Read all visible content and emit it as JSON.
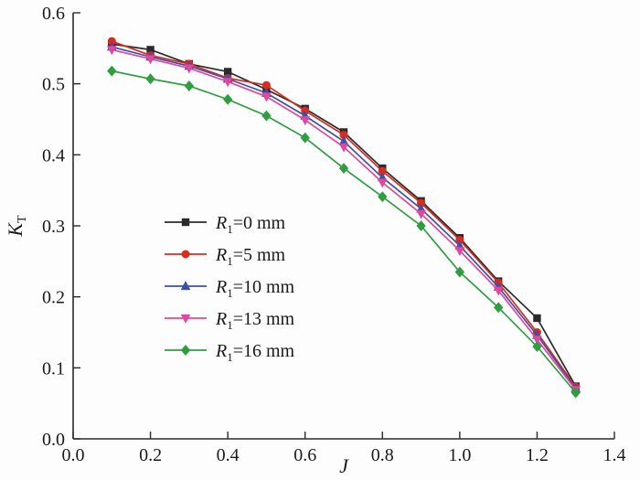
{
  "chart_data": {
    "type": "line",
    "title": "",
    "xlabel": "J",
    "ylabel": "K",
    "ylabel_sub": "T",
    "xlim": [
      0.0,
      1.4
    ],
    "ylim": [
      0.0,
      0.6
    ],
    "xticks": [
      "0.0",
      "0.2",
      "0.4",
      "0.6",
      "0.8",
      "1.0",
      "1.2",
      "1.4"
    ],
    "yticks": [
      "0.0",
      "0.1",
      "0.2",
      "0.3",
      "0.4",
      "0.5",
      "0.6"
    ],
    "grid": false,
    "legend_position": "inside-left-middle",
    "axis_color": "#2b2b2b",
    "x": [
      0.1,
      0.2,
      0.3,
      0.4,
      0.5,
      0.6,
      0.7,
      0.8,
      0.9,
      1.0,
      1.1,
      1.2,
      1.3
    ],
    "series": [
      {
        "name": "R₁=0 mm",
        "marker": "square",
        "color": "#2b2b2b",
        "values": [
          0.556,
          0.548,
          0.528,
          0.517,
          0.492,
          0.465,
          0.432,
          0.381,
          0.335,
          0.283,
          0.222,
          0.17,
          0.074
        ]
      },
      {
        "name": "R₁=5 mm",
        "marker": "circle",
        "color": "#d92b1f",
        "values": [
          0.56,
          0.54,
          0.528,
          0.508,
          0.498,
          0.462,
          0.428,
          0.377,
          0.332,
          0.28,
          0.22,
          0.15,
          0.073
        ]
      },
      {
        "name": "R₁=10 mm",
        "marker": "triangle-up",
        "color": "#3b52a5",
        "values": [
          0.552,
          0.538,
          0.525,
          0.507,
          0.487,
          0.455,
          0.419,
          0.368,
          0.324,
          0.272,
          0.214,
          0.146,
          0.071
        ]
      },
      {
        "name": "R₁=13 mm",
        "marker": "triangle-down",
        "color": "#e0479e",
        "values": [
          0.548,
          0.535,
          0.522,
          0.503,
          0.482,
          0.449,
          0.411,
          0.361,
          0.317,
          0.265,
          0.209,
          0.14,
          0.069
        ]
      },
      {
        "name": "R₁=16 mm",
        "marker": "diamond",
        "color": "#2f9e41",
        "values": [
          0.518,
          0.507,
          0.497,
          0.478,
          0.455,
          0.424,
          0.381,
          0.341,
          0.3,
          0.235,
          0.185,
          0.13,
          0.065
        ]
      }
    ]
  }
}
